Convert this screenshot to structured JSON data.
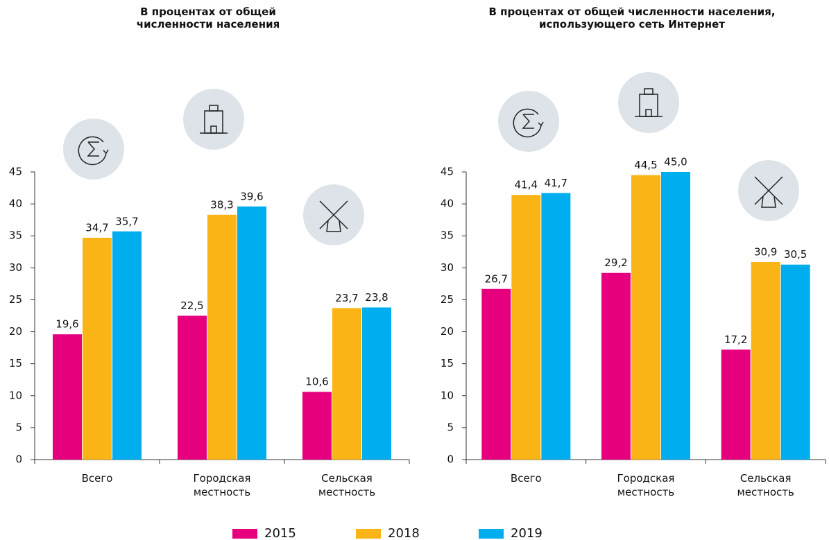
{
  "chart_data": [
    {
      "type": "bar",
      "title": "В процентах от общей численности населения",
      "categories": [
        "Всего",
        "Городская местность",
        "Сельская местность"
      ],
      "series": [
        {
          "name": "2015",
          "color": "#e6007e",
          "values": [
            19.6,
            22.5,
            10.6
          ],
          "value_labels": [
            "19,6",
            "22,5",
            "10,6"
          ]
        },
        {
          "name": "2018",
          "color": "#fbb415",
          "values": [
            34.7,
            38.3,
            23.7
          ],
          "value_labels": [
            "34,7",
            "38,3",
            "23,7"
          ]
        },
        {
          "name": "2019",
          "color": "#00aeef",
          "values": [
            35.7,
            39.6,
            23.8
          ],
          "value_labels": [
            "35,7",
            "39,6",
            "23,8"
          ]
        }
      ],
      "ylim": [
        0,
        45
      ],
      "yticks": [
        0,
        5,
        10,
        15,
        20,
        25,
        30,
        35,
        40,
        45
      ],
      "grid": false
    },
    {
      "type": "bar",
      "title": "В процентах от общей численности населения, использующего сеть Интернет",
      "categories": [
        "Всего",
        "Городская местность",
        "Сельская местность"
      ],
      "series": [
        {
          "name": "2015",
          "color": "#e6007e",
          "values": [
            26.7,
            29.2,
            17.2
          ],
          "value_labels": [
            "26,7",
            "29,2",
            "17,2"
          ]
        },
        {
          "name": "2018",
          "color": "#fbb415",
          "values": [
            41.4,
            44.5,
            30.9
          ],
          "value_labels": [
            "41,4",
            "44,5",
            "30,9"
          ]
        },
        {
          "name": "2019",
          "color": "#00aeef",
          "values": [
            41.7,
            45.0,
            30.5
          ],
          "value_labels": [
            "41,7",
            "45,0",
            "30,5"
          ]
        }
      ],
      "ylim": [
        0,
        45
      ],
      "yticks": [
        0,
        5,
        10,
        15,
        20,
        25,
        30,
        35,
        40,
        45
      ],
      "grid": false
    }
  ]
}
